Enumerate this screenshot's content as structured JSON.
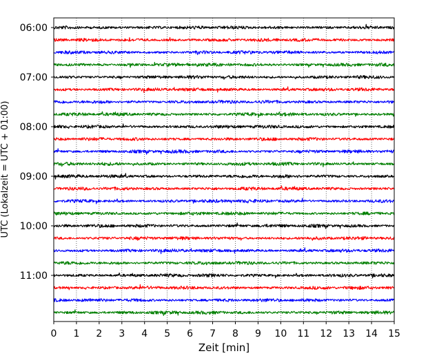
{
  "chart_data": {
    "type": "line",
    "title": "",
    "xlabel": "Zeit  [min]",
    "ylabel": "UTC (Lokalzeit = UTC + 01:00)",
    "xlim": [
      0,
      15
    ],
    "x_ticks": [
      "0",
      "1",
      "2",
      "3",
      "4",
      "5",
      "6",
      "7",
      "8",
      "9",
      "10",
      "11",
      "12",
      "13",
      "14",
      "15"
    ],
    "y_ticks": [
      "06:00",
      "07:00",
      "08:00",
      "09:00",
      "10:00",
      "11:00"
    ],
    "start_time": "06:00",
    "minutes_per_trace": 15,
    "trace_count": 24,
    "color_cycle": [
      "#000000",
      "#ff0000",
      "#0000ff",
      "#007f00"
    ],
    "vertical_grid": "dotted",
    "legend": "none"
  }
}
